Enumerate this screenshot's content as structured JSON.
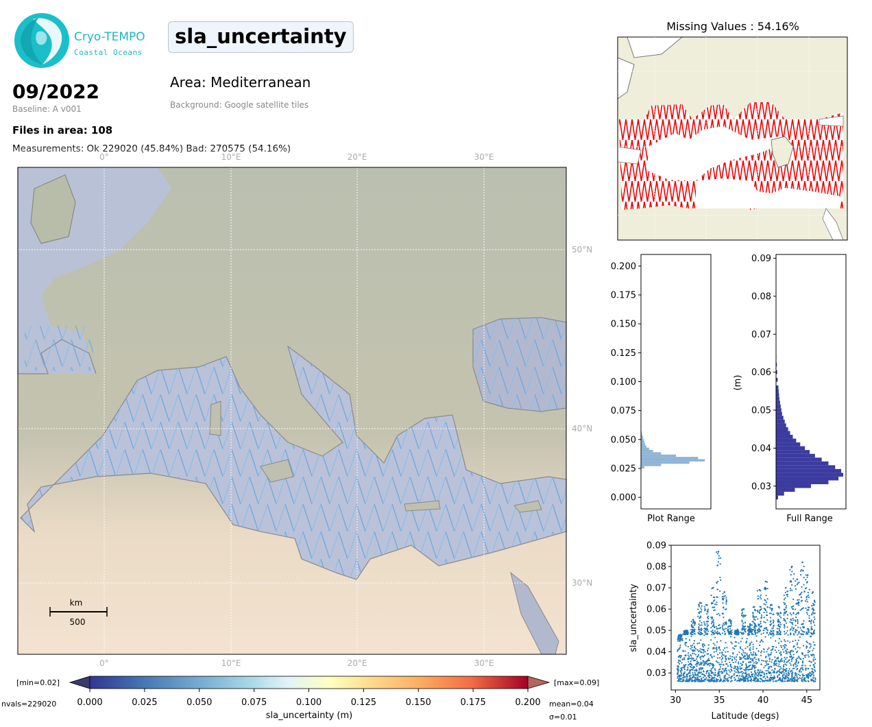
{
  "header": {
    "logo_title": "Cryo-TEMPO",
    "logo_subtitle": "Coastal Oceans",
    "variable_name": "sla_uncertainty",
    "date": "09/2022",
    "baseline": "Baseline: A v001",
    "files_in_area": "Files in area: 108",
    "measurements": "Measurements: Ok 229020 (45.84%) Bad: 270575 (54.16%)",
    "area": "Area: Mediterranean",
    "background_source": "Background: Google satellite tiles"
  },
  "main_map": {
    "lon_labels": [
      "0°",
      "10°E",
      "20°E",
      "30°E"
    ],
    "lat_labels": [
      "50°N",
      "40°N",
      "30°N"
    ],
    "scale_unit": "km",
    "scale_value": "500"
  },
  "colorbar": {
    "label": "sla_uncertainty (m)",
    "ticks": [
      "0.000",
      "0.025",
      "0.050",
      "0.075",
      "0.100",
      "0.125",
      "0.150",
      "0.175",
      "0.200"
    ],
    "min_label": "[min=0.02]",
    "max_label": "[max=0.09]",
    "nvals": "nvals=229020",
    "mean": "mean=0.04",
    "sigma": "σ=0.01"
  },
  "missing_map": {
    "title": "Missing Values : 54.16%"
  },
  "chart_data": [
    {
      "type": "bar",
      "orientation": "horizontal-histogram",
      "xlabel": "Plot Range",
      "ylim": [
        -0.01,
        0.21
      ],
      "yticks": [
        "0.000",
        "0.025",
        "0.050",
        "0.075",
        "0.100",
        "0.125",
        "0.150",
        "0.175",
        "0.200"
      ],
      "bin_centers": [
        0.026,
        0.028,
        0.03,
        0.032,
        0.034,
        0.036,
        0.038,
        0.04,
        0.042,
        0.044,
        0.046,
        0.048,
        0.05,
        0.052,
        0.054,
        0.056
      ],
      "values": [
        0.05,
        0.3,
        0.72,
        0.95,
        0.85,
        0.52,
        0.3,
        0.18,
        0.12,
        0.08,
        0.06,
        0.05,
        0.04,
        0.03,
        0.02,
        0.01
      ],
      "color": "#8fb4d6"
    },
    {
      "type": "bar",
      "orientation": "horizontal-histogram",
      "xlabel": "Full Range",
      "ylabel": "(m)",
      "ylim": [
        0.024,
        0.091
      ],
      "yticks": [
        "0.03",
        "0.04",
        "0.05",
        "0.06",
        "0.07",
        "0.08",
        "0.09"
      ],
      "bin_centers": [
        0.027,
        0.028,
        0.029,
        0.03,
        0.031,
        0.032,
        0.033,
        0.034,
        0.035,
        0.036,
        0.037,
        0.038,
        0.039,
        0.04,
        0.041,
        0.042,
        0.043,
        0.044,
        0.045,
        0.046,
        0.047,
        0.048,
        0.049,
        0.05,
        0.051,
        0.052,
        0.053,
        0.054,
        0.055,
        0.056,
        0.058,
        0.06,
        0.062,
        0.064
      ],
      "values": [
        0.03,
        0.12,
        0.28,
        0.52,
        0.78,
        0.93,
        1.0,
        0.97,
        0.88,
        0.78,
        0.68,
        0.58,
        0.5,
        0.43,
        0.36,
        0.3,
        0.25,
        0.21,
        0.18,
        0.15,
        0.13,
        0.11,
        0.09,
        0.08,
        0.07,
        0.06,
        0.05,
        0.045,
        0.04,
        0.035,
        0.025,
        0.018,
        0.012,
        0.006
      ],
      "color": "#3b3ba0"
    },
    {
      "type": "scatter",
      "xlabel": "Latitude (degs)",
      "ylabel": "sla_uncertainty",
      "xlim": [
        29.5,
        46.5
      ],
      "ylim": [
        0.022,
        0.09
      ],
      "xticks": [
        "30",
        "35",
        "40",
        "45"
      ],
      "yticks": [
        "0.03",
        "0.04",
        "0.05",
        "0.06",
        "0.07",
        "0.08",
        "0.09"
      ],
      "band": {
        "x_start": 30.2,
        "x_end": 46.0,
        "lower": 0.026,
        "upper": 0.052
      },
      "peaks": [
        {
          "x": 30.5,
          "y": 0.045
        },
        {
          "x": 31.2,
          "y": 0.05
        },
        {
          "x": 32.0,
          "y": 0.055
        },
        {
          "x": 32.8,
          "y": 0.063
        },
        {
          "x": 33.5,
          "y": 0.062
        },
        {
          "x": 34.3,
          "y": 0.07
        },
        {
          "x": 34.9,
          "y": 0.087
        },
        {
          "x": 35.6,
          "y": 0.068
        },
        {
          "x": 36.2,
          "y": 0.055
        },
        {
          "x": 37.0,
          "y": 0.05
        },
        {
          "x": 37.8,
          "y": 0.06
        },
        {
          "x": 38.5,
          "y": 0.053
        },
        {
          "x": 39.0,
          "y": 0.061
        },
        {
          "x": 39.6,
          "y": 0.069
        },
        {
          "x": 40.3,
          "y": 0.073
        },
        {
          "x": 41.0,
          "y": 0.062
        },
        {
          "x": 41.8,
          "y": 0.061
        },
        {
          "x": 42.6,
          "y": 0.07
        },
        {
          "x": 43.3,
          "y": 0.08
        },
        {
          "x": 43.9,
          "y": 0.074
        },
        {
          "x": 44.5,
          "y": 0.082
        },
        {
          "x": 45.1,
          "y": 0.076
        },
        {
          "x": 45.7,
          "y": 0.068
        }
      ],
      "color": "#1f77b4"
    }
  ]
}
